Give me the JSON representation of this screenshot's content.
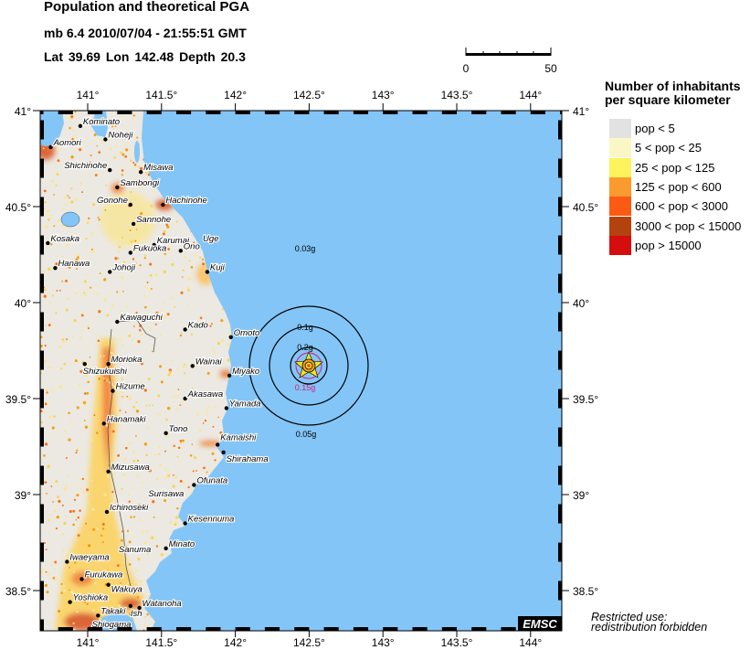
{
  "header": {
    "title": "Population and theoretical PGA",
    "event": "mb 6.4  2010/07/04 - 21:55:51 GMT",
    "location": "Lat 39.69    Lon 142.48    Depth  20.3"
  },
  "scale_bar": {
    "start_label": "0",
    "end_label": "50"
  },
  "axes": {
    "lon_ticks": [
      "141°",
      "141.5°",
      "142°",
      "142.5°",
      "143°",
      "143.5°",
      "144°"
    ],
    "lat_ticks": [
      "41°",
      "40.5°",
      "40°",
      "39.5°",
      "39°",
      "38.5°"
    ]
  },
  "legend": {
    "title_line1": "Number of inhabitants",
    "title_line2": "per square kilometer",
    "items": [
      {
        "label": "pop < 5",
        "color": "#e2e2e2"
      },
      {
        "label": "5 < pop < 25",
        "color": "#fbf7c4"
      },
      {
        "label": "25 < pop < 125",
        "color": "#fef35a"
      },
      {
        "label": "125 < pop < 600",
        "color": "#fb9a2f"
      },
      {
        "label": "600 < pop < 3000",
        "color": "#fb5a14"
      },
      {
        "label": "3000 < pop < 15000",
        "color": "#b3420f"
      },
      {
        "label": "pop > 15000",
        "color": "#d50d0d"
      }
    ]
  },
  "colors": {
    "sea": "#83c5f7",
    "land": "#ebe9e2"
  },
  "epicenter": {
    "lon": 142.48,
    "lat": 39.69
  },
  "pga_labels": [
    {
      "text": "0.03g",
      "color": "#000000"
    },
    {
      "text": "0.1g",
      "color": "#000000"
    },
    {
      "text": "0.2g",
      "color": "#000000"
    },
    {
      "text": "0.15g",
      "color": "#d0207a"
    },
    {
      "text": "0.05g",
      "color": "#000000"
    }
  ],
  "towns": [
    {
      "name": "Kominato",
      "lon": 140.95,
      "lat": 40.92
    },
    {
      "name": "Noheji",
      "lon": 141.12,
      "lat": 40.85
    },
    {
      "name": "Aomori",
      "lon": 140.75,
      "lat": 40.81
    },
    {
      "name": "Shichinohe",
      "lon": 141.15,
      "lat": 40.69
    },
    {
      "name": "Misawa",
      "lon": 141.36,
      "lat": 40.68
    },
    {
      "name": "Sambongi",
      "lon": 141.2,
      "lat": 40.6
    },
    {
      "name": "Gonohe",
      "lon": 141.29,
      "lat": 40.51
    },
    {
      "name": "Hachinohe",
      "lon": 141.51,
      "lat": 40.51
    },
    {
      "name": "Sannohe",
      "lon": 141.31,
      "lat": 40.41
    },
    {
      "name": "Kosaka",
      "lon": 140.73,
      "lat": 40.31
    },
    {
      "name": "Karumai",
      "lon": 141.45,
      "lat": 40.3
    },
    {
      "name": "Fukuoka",
      "lon": 141.29,
      "lat": 40.26
    },
    {
      "name": "Ono",
      "lon": 141.63,
      "lat": 40.27
    },
    {
      "name": "Uge",
      "lon": 141.78,
      "lat": 40.31,
      "nodot": true
    },
    {
      "name": "Hanawa",
      "lon": 140.78,
      "lat": 40.18
    },
    {
      "name": "Johoji",
      "lon": 141.15,
      "lat": 40.16
    },
    {
      "name": "Kuji",
      "lon": 141.81,
      "lat": 40.16
    },
    {
      "name": "Kawaguchi",
      "lon": 141.2,
      "lat": 39.9
    },
    {
      "name": "Kado",
      "lon": 141.66,
      "lat": 39.86
    },
    {
      "name": "Omoto",
      "lon": 141.97,
      "lat": 39.82
    },
    {
      "name": "Shizukuishi",
      "lon": 140.98,
      "lat": 39.68
    },
    {
      "name": "Morioka",
      "lon": 141.14,
      "lat": 39.68
    },
    {
      "name": "Wainai",
      "lon": 141.71,
      "lat": 39.67
    },
    {
      "name": "Miyako",
      "lon": 141.96,
      "lat": 39.62
    },
    {
      "name": "Hizume",
      "lon": 141.17,
      "lat": 39.54
    },
    {
      "name": "Akasawa",
      "lon": 141.66,
      "lat": 39.5
    },
    {
      "name": "Yamada",
      "lon": 141.94,
      "lat": 39.45
    },
    {
      "name": "Hanamaki",
      "lon": 141.11,
      "lat": 39.37
    },
    {
      "name": "Tono",
      "lon": 141.53,
      "lat": 39.32
    },
    {
      "name": "Kamaishi",
      "lon": 141.88,
      "lat": 39.26
    },
    {
      "name": "Shirahama",
      "lon": 141.92,
      "lat": 39.22
    },
    {
      "name": "Mizusawa",
      "lon": 141.14,
      "lat": 39.12
    },
    {
      "name": "Ofunata",
      "lon": 141.72,
      "lat": 39.05
    },
    {
      "name": "Surisawa",
      "lon": 141.41,
      "lat": 38.98,
      "nodot": true
    },
    {
      "name": "Ichinoseki",
      "lon": 141.13,
      "lat": 38.91
    },
    {
      "name": "Kesennuma",
      "lon": 141.66,
      "lat": 38.85
    },
    {
      "name": "Minato",
      "lon": 141.53,
      "lat": 38.72
    },
    {
      "name": "Sanuma",
      "lon": 141.21,
      "lat": 38.69,
      "nodot": true
    },
    {
      "name": "Iwaeyama",
      "lon": 140.86,
      "lat": 38.65
    },
    {
      "name": "Furukawa",
      "lon": 140.96,
      "lat": 38.56
    },
    {
      "name": "Wakuya",
      "lon": 141.14,
      "lat": 38.53
    },
    {
      "name": "Yoshioka",
      "lon": 140.88,
      "lat": 38.44
    },
    {
      "name": "Ish",
      "lon": 141.29,
      "lat": 38.42
    },
    {
      "name": "Watanoha",
      "lon": 141.35,
      "lat": 38.41
    },
    {
      "name": "Takaki",
      "lon": 141.07,
      "lat": 38.37
    },
    {
      "name": "Shiogama",
      "lon": 141.01,
      "lat": 38.3
    }
  ],
  "logo": "EMSC",
  "notice": {
    "line1": "Restricted use:",
    "line2": "redistribution forbidden"
  }
}
